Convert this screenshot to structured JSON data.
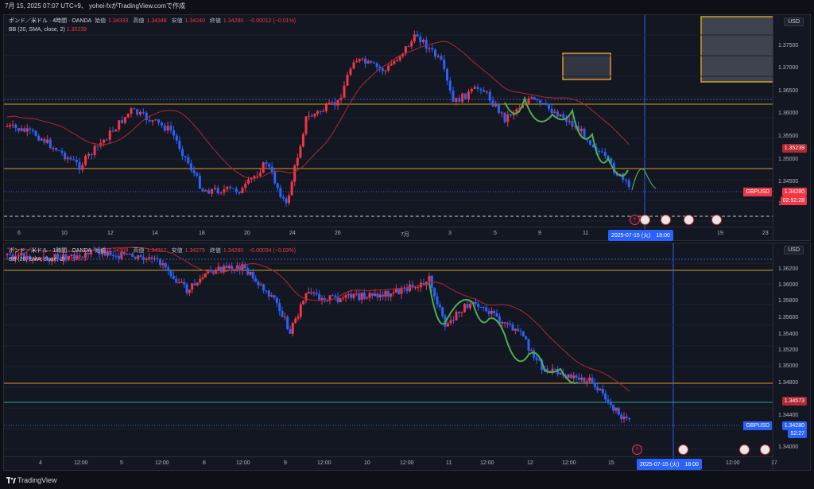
{
  "header": {
    "text": "7月 15, 2025 07:07 UTC+9、 yohei-fxがTradingView.comで作成"
  },
  "pane1": {
    "title": "ポンド／米ドル · 4時間 · OANDA",
    "open_label": "始値",
    "open": "1.34333",
    "high_label": "高値",
    "high": "1.34348",
    "low_label": "安値",
    "low": "1.34240",
    "close_label": "終値",
    "close": "1.34280",
    "change": "−0.00012 (−0.01%)",
    "bb_label": "BB (20, SMA, close, 2)",
    "bb_value": "1.35239",
    "currency": "USD",
    "price_ticks": [
      "1.37500",
      "1.37000",
      "1.36500",
      "1.36000",
      "1.35500",
      "1.35000",
      "1.34500",
      "1.34000"
    ],
    "bb_tag": "1.35239",
    "symbol_tag": "GBPUSD",
    "price_tag": "1.34280",
    "countdown": "02:52:28",
    "time_ticks": [
      "6",
      "10",
      "12",
      "14",
      "18",
      "20",
      "24",
      "26",
      "7月",
      "3",
      "5",
      "9",
      "11",
      "19",
      "23"
    ],
    "crosshair_time": "2025-07-15 (火)　18:00"
  },
  "pane2": {
    "title": "ポンド／米ドル · 1時間 · OANDA",
    "open_label": "始値",
    "open": "1.34309",
    "high_label": "高値",
    "high": "1.34317",
    "low_label": "安値",
    "low": "1.34275",
    "close_label": "終値",
    "close": "1.34280",
    "change": "−0.00034 (−0.03%)",
    "bb_label": "BB (20, SMA, close, 2)",
    "bb_value": "1.34573",
    "currency": "USD",
    "price_ticks": [
      "1.36200",
      "1.36000",
      "1.35800",
      "1.35600",
      "1.35400",
      "1.35200",
      "1.35000",
      "1.34800",
      "1.34400",
      "1.34000"
    ],
    "bb_tag": "1.34573",
    "symbol_tag": "GBPUSD",
    "price_tag": "1.34280",
    "countdown": "52:27",
    "time_ticks": [
      "4",
      "12:00",
      "5",
      "12:00",
      "8",
      "12:00",
      "9",
      "12:00",
      "10",
      "12:00",
      "11",
      "12:00",
      "12",
      "12:00",
      "14",
      "12:00",
      "15",
      "12:00",
      "17"
    ],
    "crosshair_time": "2025-07-15 (火)　18:00"
  },
  "footer": {
    "brand": "TradingView"
  },
  "colors": {
    "bull": "#f23645",
    "bear": "#2962ff",
    "bb": "#b22833",
    "yellow": "#c9a227",
    "orange": "#e0962a",
    "wave": "#4caf50"
  }
}
